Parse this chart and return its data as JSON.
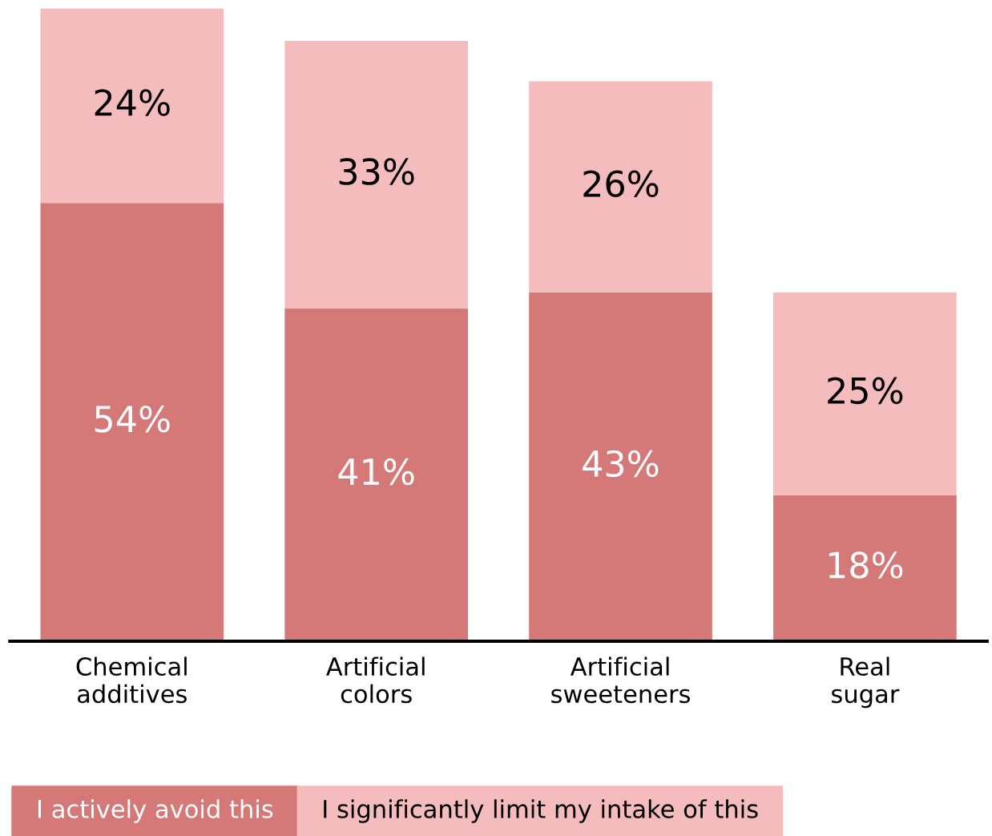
{
  "chart_data": {
    "type": "bar",
    "stacked": true,
    "categories": [
      "Chemical\nadditives",
      "Artificial\ncolors",
      "Artificial\nsweeteners",
      "Real\nsugar"
    ],
    "series": [
      {
        "name": "I actively avoid this",
        "color": "#d47878",
        "values": [
          54,
          41,
          43,
          18
        ],
        "value_labels": [
          "54%",
          "41%",
          "43%",
          "18%"
        ]
      },
      {
        "name": "I significantly limit my intake of this",
        "color": "#f4bcbc",
        "values": [
          24,
          33,
          26,
          25
        ],
        "value_labels": [
          "24%",
          "33%",
          "26%",
          "25%"
        ]
      }
    ],
    "legend": "bottom",
    "grid": false
  }
}
